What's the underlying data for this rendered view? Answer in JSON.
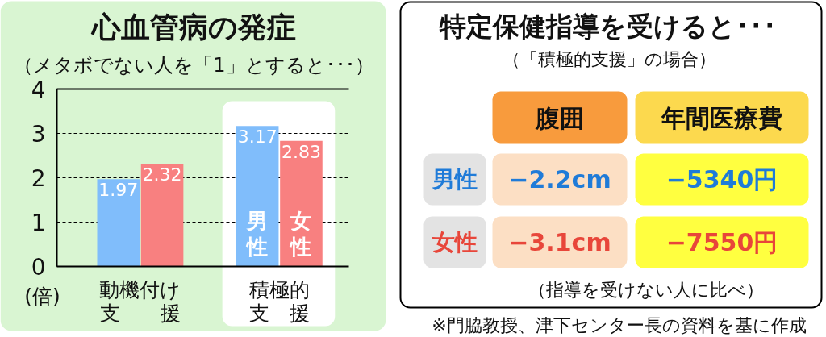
{
  "chart_data": [
    {
      "type": "bar",
      "title": "心血管病の発症",
      "subtitle": "（メタボでない人を「1」とすると･･･）",
      "ylabel": "(倍)",
      "categories": [
        "動機付け支援",
        "積極的支援"
      ],
      "series": [
        {
          "name": "男性",
          "color": "#80bdfb",
          "values": [
            1.97,
            3.17
          ]
        },
        {
          "name": "女性",
          "color": "#f88080",
          "values": [
            2.32,
            2.83
          ]
        }
      ],
      "ylim": [
        0,
        4
      ],
      "yticks": [
        0,
        1,
        2,
        3,
        4
      ],
      "grid": "y",
      "data_labels": true,
      "bands": [
        {
          "axis": "x",
          "from": "積極的支援",
          "to": "積極的支援",
          "color": "#ffffff"
        }
      ]
    },
    {
      "type": "other",
      "title": "特定保健指導を受けると･･･",
      "subtitle": "（「積極的支援」の場合）",
      "annotations": [
        "腹囲",
        "年間医療費",
        "男性",
        "−2.2cm",
        "−5340円",
        "女性",
        "−3.1cm",
        "−7550円",
        "（指導を受けない人に比べ）",
        "※門脇教授、津下センター長の資料を基に作成"
      ]
    }
  ]
}
